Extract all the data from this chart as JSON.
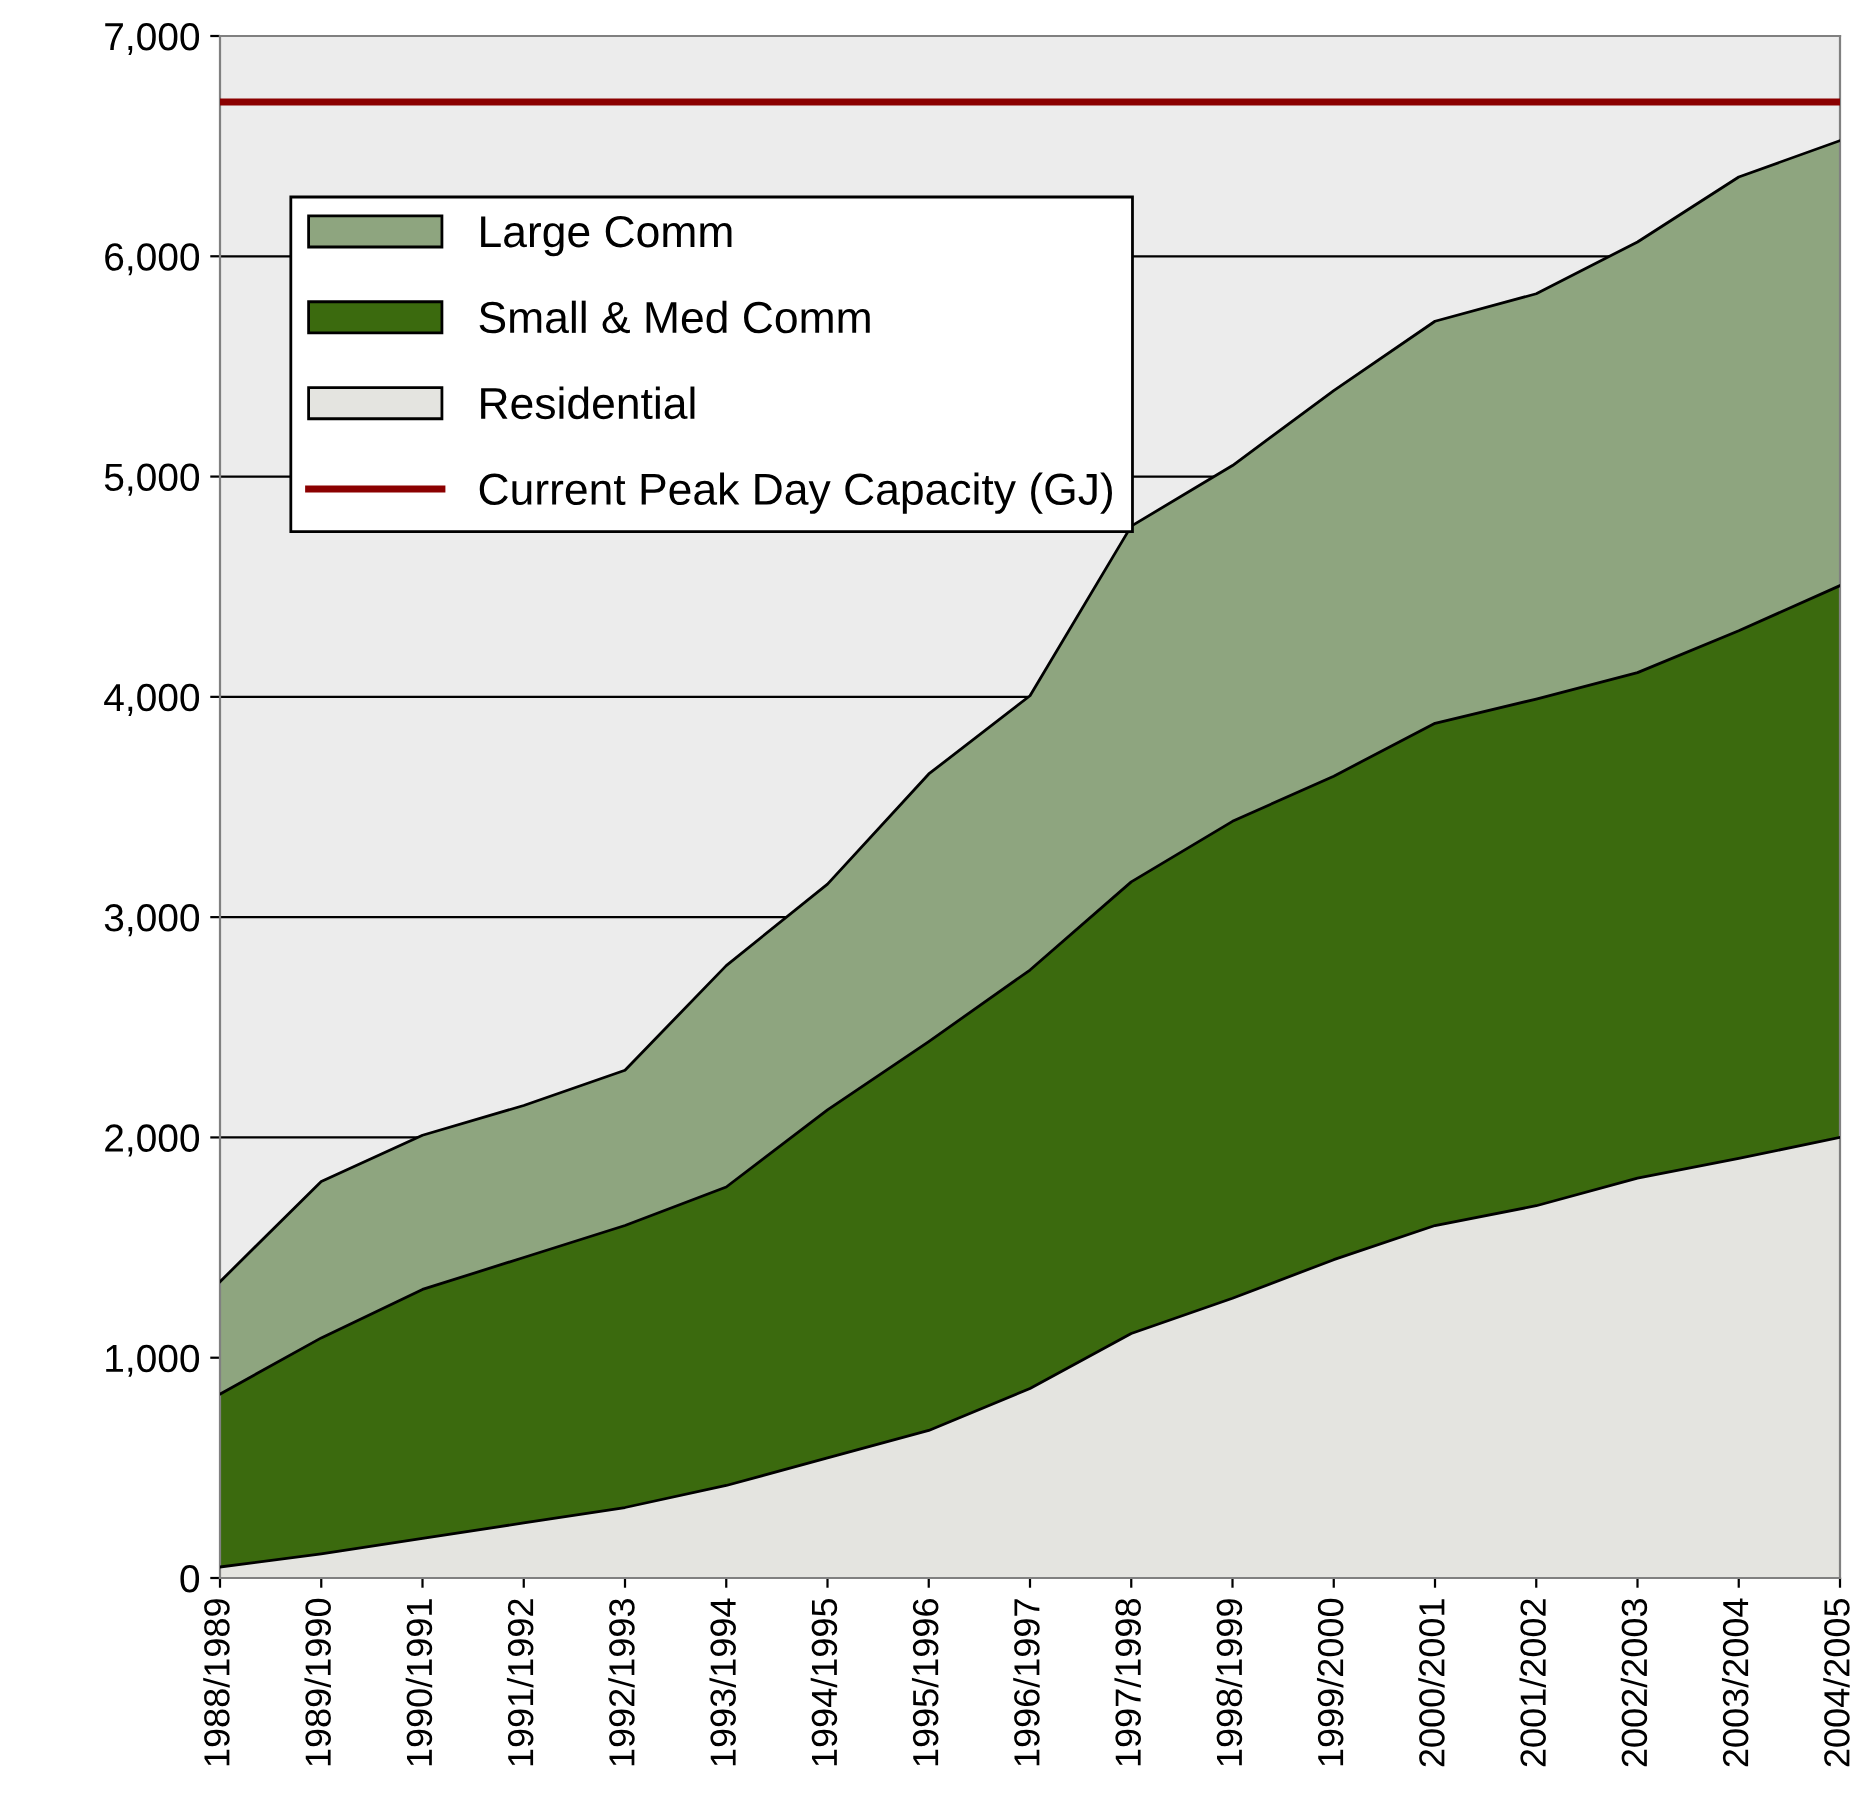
{
  "chart_data": {
    "type": "area",
    "stacked": true,
    "categories": [
      "1988/1989",
      "1989/1990",
      "1990/1991",
      "1991/1992",
      "1992/1993",
      "1993/1994",
      "1994/1995",
      "1995/1996",
      "1996/1997",
      "1997/1998",
      "1998/1999",
      "1999/2000",
      "2000/2001",
      "2001/2002",
      "2002/2003",
      "2003/2004",
      "2004/2005"
    ],
    "series": [
      {
        "name": "Residential",
        "color": "#e4e4e0",
        "values": [
          50,
          110,
          180,
          250,
          320,
          420,
          545,
          670,
          860,
          1110,
          1270,
          1445,
          1600,
          1690,
          1815,
          1905,
          2000
        ]
      },
      {
        "name": "Small & Med Comm",
        "color": "#3b6a0e",
        "values": [
          785,
          980,
          1130,
          1205,
          1280,
          1355,
          1580,
          1765,
          1900,
          2050,
          2165,
          2195,
          2280,
          2300,
          2295,
          2395,
          2505
        ]
      },
      {
        "name": "Large Comm",
        "color": "#8ea57f",
        "values": [
          510,
          710,
          700,
          690,
          705,
          1005,
          1025,
          1215,
          1245,
          1615,
          1615,
          1750,
          1825,
          1840,
          1955,
          2060,
          2020
        ]
      }
    ],
    "ref_lines": [
      {
        "axis": "y",
        "value": 6700,
        "label": "Current Peak Day Capacity (GJ)",
        "color": "#8b0000",
        "line_style": "solid"
      }
    ],
    "ylim": [
      0,
      7000
    ],
    "yticks": [
      {
        "value": 0,
        "label": "0"
      },
      {
        "value": 1000,
        "label": "1,000"
      },
      {
        "value": 2000,
        "label": "2,000"
      },
      {
        "value": 3000,
        "label": "3,000"
      },
      {
        "value": 4000,
        "label": "4,000"
      },
      {
        "value": 5000,
        "label": "5,000"
      },
      {
        "value": 6000,
        "label": "6,000"
      },
      {
        "value": 7000,
        "label": "7,000"
      }
    ],
    "grid": "y",
    "legend": "top left"
  }
}
